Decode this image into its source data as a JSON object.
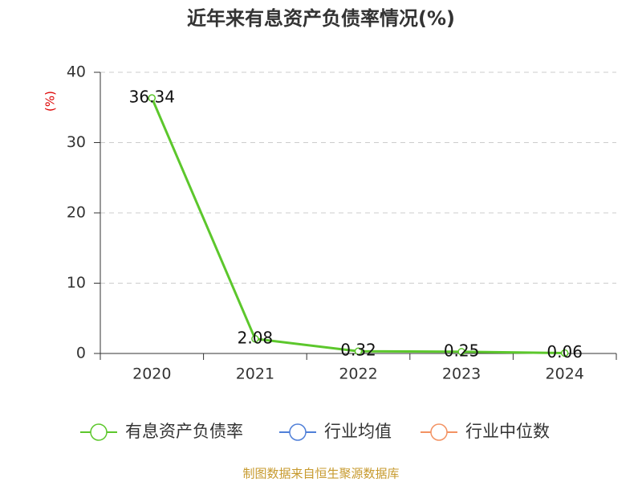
{
  "chart_data": {
    "type": "line",
    "title": "近年来有息资产负债率情况(%)",
    "y_label": "(%)",
    "categories": [
      "2020",
      "2021",
      "2022",
      "2023",
      "2024"
    ],
    "series": [
      {
        "name": "有息资产负债率",
        "color": "#5cc72c",
        "values": [
          36.34,
          2.08,
          0.32,
          0.25,
          0.06
        ]
      },
      {
        "name": "行业均值",
        "color": "#4f7fd8",
        "values": [
          null,
          null,
          null,
          null,
          null
        ]
      },
      {
        "name": "行业中位数",
        "color": "#f39262",
        "values": [
          null,
          null,
          null,
          null,
          null
        ]
      }
    ],
    "ylim": [
      0,
      40
    ],
    "yticks": [
      0,
      10,
      20,
      30,
      40
    ],
    "grid": true,
    "source": "制图数据来自恒生聚源数据库"
  }
}
